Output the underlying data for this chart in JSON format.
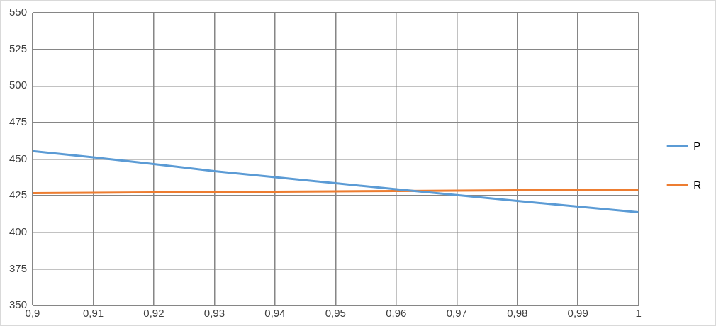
{
  "chart_data": {
    "type": "line",
    "x": [
      0.9,
      0.91,
      0.92,
      0.93,
      0.94,
      0.95,
      0.96,
      0.97,
      0.98,
      0.99,
      1
    ],
    "series": [
      {
        "name": "P",
        "color": "#5b9bd5",
        "values": [
          455.5,
          451.2,
          446.6,
          441.8,
          437.6,
          433.5,
          429.4,
          425.4,
          421.4,
          417.5,
          413.7
        ]
      },
      {
        "name": "R",
        "color": "#ed7d31",
        "values": [
          426.8,
          427,
          427.3,
          427.5,
          427.7,
          428,
          428.2,
          428.4,
          428.7,
          428.9,
          429.2
        ]
      }
    ],
    "xlim": [
      0.9,
      1
    ],
    "xticks": [
      {
        "value": 0.9,
        "label": "0,9"
      },
      {
        "value": 0.91,
        "label": "0,91"
      },
      {
        "value": 0.92,
        "label": "0,92"
      },
      {
        "value": 0.93,
        "label": "0,93"
      },
      {
        "value": 0.94,
        "label": "0,94"
      },
      {
        "value": 0.95,
        "label": "0,95"
      },
      {
        "value": 0.96,
        "label": "0,96"
      },
      {
        "value": 0.97,
        "label": "0,97"
      },
      {
        "value": 0.98,
        "label": "0,98"
      },
      {
        "value": 0.99,
        "label": "0,99"
      },
      1
    ],
    "ylim": [
      350,
      550
    ],
    "yticks": [
      350,
      375,
      400,
      425,
      450,
      475,
      500,
      525,
      550
    ],
    "grid": true,
    "legend": "right",
    "marker": "none",
    "line_style": "solid"
  }
}
